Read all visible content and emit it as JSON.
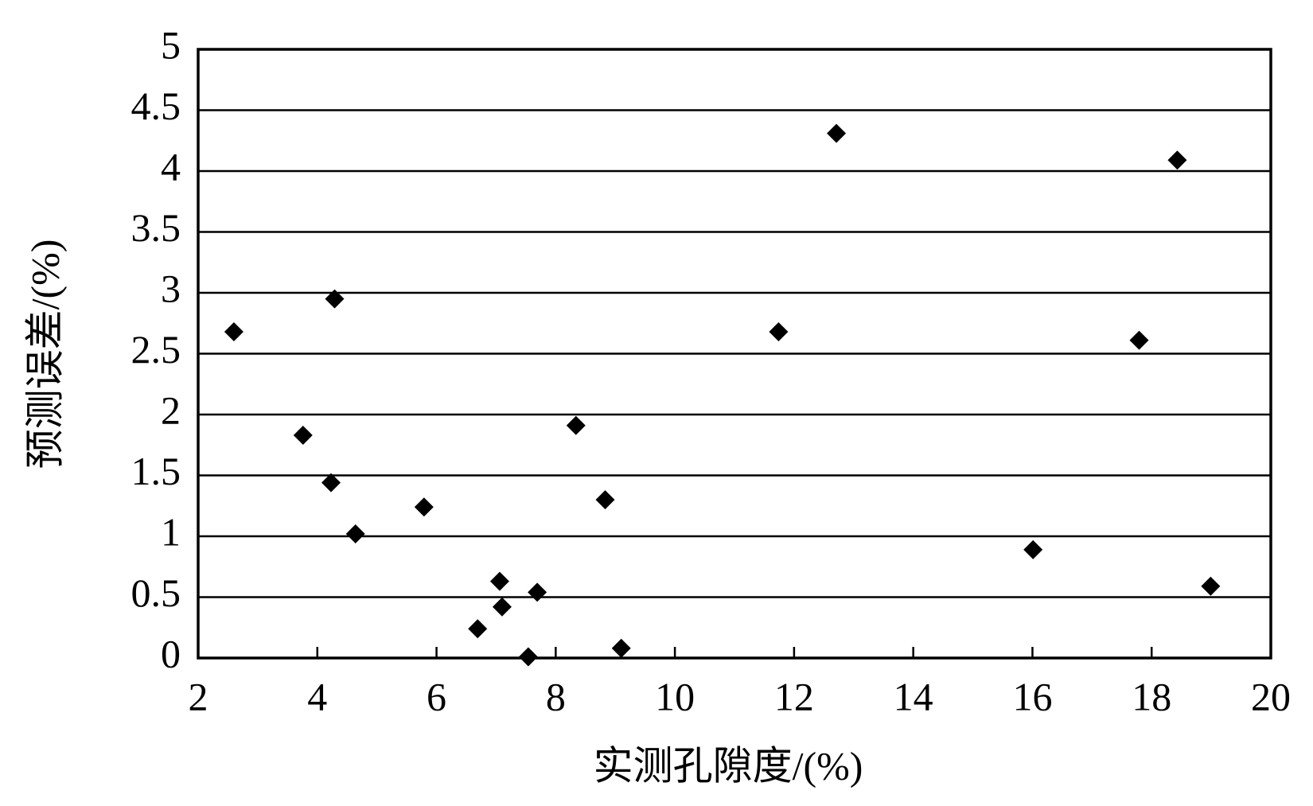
{
  "chart_data": {
    "type": "scatter",
    "x_label": "实测孔隙度/(%)",
    "y_label": "预测误差/(%)",
    "x": [
      2.6,
      3.76,
      4.29,
      4.23,
      4.64,
      5.79,
      6.69,
      7.06,
      7.1,
      7.54,
      7.69,
      8.34,
      8.83,
      9.1,
      11.74,
      12.71,
      16.01,
      17.79,
      18.43,
      18.99
    ],
    "values": [
      2.68,
      1.83,
      2.95,
      1.44,
      1.02,
      1.24,
      0.24,
      0.63,
      0.42,
      0.01,
      0.54,
      1.91,
      1.3,
      0.08,
      2.68,
      4.31,
      0.89,
      2.61,
      4.09,
      0.59
    ],
    "color": "#000000",
    "xlim": [
      2,
      20
    ],
    "xticks": [
      2,
      4,
      6,
      8,
      10,
      12,
      14,
      16,
      18,
      20
    ],
    "ylim": [
      0,
      5
    ],
    "yticks": [
      0,
      0.5,
      1,
      1.5,
      2,
      2.5,
      3,
      3.5,
      4,
      4.5,
      5
    ],
    "grid": true
  }
}
